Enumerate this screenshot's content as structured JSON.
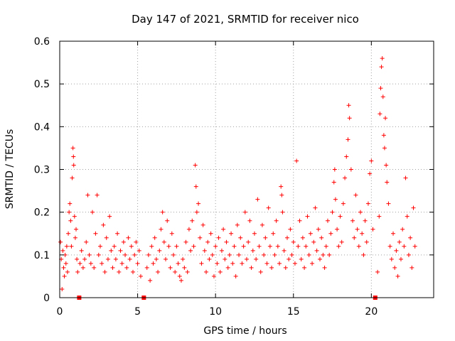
{
  "chart_data": {
    "type": "scatter",
    "title": "Day 147 of 2021, SRMTID for receiver nico",
    "xlabel": "GPS time / hours",
    "ylabel": "SRMTID / TECUs",
    "xlim": [
      0,
      24
    ],
    "ylim": [
      0,
      0.6
    ],
    "x_ticks": [
      0,
      5,
      10,
      15,
      20
    ],
    "y_ticks": [
      0,
      0.1,
      0.2,
      0.3,
      0.4,
      0.5,
      0.6
    ],
    "x_tick_labels": [
      "0",
      "5",
      "10",
      "15",
      "20"
    ],
    "y_tick_labels": [
      "0",
      "0.1",
      "0.2",
      "0.3",
      "0.4",
      "0.5",
      "0.6"
    ],
    "grid": true,
    "marker": "+",
    "marker_color": "#ff0000",
    "baseline_gaps_hours": [
      1.25,
      5.4,
      20.25
    ],
    "series": [
      {
        "name": "SRMTID",
        "points": [
          [
            0.05,
            0.13
          ],
          [
            0.1,
            0.09
          ],
          [
            0.15,
            0.02
          ],
          [
            0.2,
            0.11
          ],
          [
            0.25,
            0.07
          ],
          [
            0.3,
            0.05
          ],
          [
            0.35,
            0.1
          ],
          [
            0.4,
            0.08
          ],
          [
            0.45,
            0.12
          ],
          [
            0.5,
            0.06
          ],
          [
            0.55,
            0.15
          ],
          [
            0.6,
            0.2
          ],
          [
            0.65,
            0.22
          ],
          [
            0.7,
            0.18
          ],
          [
            0.75,
            0.12
          ],
          [
            0.8,
            0.28
          ],
          [
            0.85,
            0.35
          ],
          [
            0.88,
            0.33
          ],
          [
            0.9,
            0.31
          ],
          [
            0.95,
            0.19
          ],
          [
            1.0,
            0.14
          ],
          [
            1.05,
            0.16
          ],
          [
            1.1,
            0.09
          ],
          [
            1.15,
            0.06
          ],
          [
            1.3,
            0.08
          ],
          [
            1.4,
            0.11
          ],
          [
            1.5,
            0.07
          ],
          [
            1.6,
            0.09
          ],
          [
            1.7,
            0.13
          ],
          [
            1.8,
            0.24
          ],
          [
            1.9,
            0.1
          ],
          [
            2.0,
            0.08
          ],
          [
            2.1,
            0.2
          ],
          [
            2.2,
            0.07
          ],
          [
            2.3,
            0.15
          ],
          [
            2.4,
            0.24
          ],
          [
            2.5,
            0.1
          ],
          [
            2.6,
            0.12
          ],
          [
            2.7,
            0.08
          ],
          [
            2.8,
            0.17
          ],
          [
            2.9,
            0.06
          ],
          [
            3.0,
            0.14
          ],
          [
            3.1,
            0.09
          ],
          [
            3.2,
            0.19
          ],
          [
            3.3,
            0.11
          ],
          [
            3.4,
            0.07
          ],
          [
            3.5,
            0.12
          ],
          [
            3.6,
            0.09
          ],
          [
            3.7,
            0.15
          ],
          [
            3.8,
            0.06
          ],
          [
            3.9,
            0.11
          ],
          [
            4.0,
            0.08
          ],
          [
            4.1,
            0.13
          ],
          [
            4.2,
            0.1
          ],
          [
            4.3,
            0.07
          ],
          [
            4.4,
            0.14
          ],
          [
            4.5,
            0.09
          ],
          [
            4.6,
            0.12
          ],
          [
            4.7,
            0.06
          ],
          [
            4.8,
            0.1
          ],
          [
            4.9,
            0.13
          ],
          [
            5.0,
            0.08
          ],
          [
            5.1,
            0.11
          ],
          [
            5.2,
            0.05
          ],
          [
            5.6,
            0.07
          ],
          [
            5.7,
            0.1
          ],
          [
            5.8,
            0.04
          ],
          [
            5.9,
            0.12
          ],
          [
            6.0,
            0.08
          ],
          [
            6.1,
            0.14
          ],
          [
            6.2,
            0.09
          ],
          [
            6.3,
            0.06
          ],
          [
            6.4,
            0.11
          ],
          [
            6.5,
            0.16
          ],
          [
            6.6,
            0.2
          ],
          [
            6.7,
            0.13
          ],
          [
            6.8,
            0.09
          ],
          [
            6.9,
            0.18
          ],
          [
            7.0,
            0.12
          ],
          [
            7.1,
            0.07
          ],
          [
            7.2,
            0.15
          ],
          [
            7.3,
            0.1
          ],
          [
            7.4,
            0.06
          ],
          [
            7.5,
            0.12
          ],
          [
            7.6,
            0.08
          ],
          [
            7.7,
            0.05
          ],
          [
            7.8,
            0.04
          ],
          [
            7.9,
            0.09
          ],
          [
            8.0,
            0.07
          ],
          [
            8.1,
            0.13
          ],
          [
            8.2,
            0.06
          ],
          [
            8.3,
            0.16
          ],
          [
            8.4,
            0.11
          ],
          [
            8.5,
            0.18
          ],
          [
            8.6,
            0.12
          ],
          [
            8.7,
            0.31
          ],
          [
            8.75,
            0.26
          ],
          [
            8.8,
            0.2
          ],
          [
            8.9,
            0.22
          ],
          [
            9.0,
            0.14
          ],
          [
            9.1,
            0.08
          ],
          [
            9.2,
            0.17
          ],
          [
            9.3,
            0.11
          ],
          [
            9.4,
            0.06
          ],
          [
            9.5,
            0.13
          ],
          [
            9.6,
            0.09
          ],
          [
            9.7,
            0.15
          ],
          [
            9.8,
            0.1
          ],
          [
            9.9,
            0.05
          ],
          [
            10.0,
            0.12
          ],
          [
            10.1,
            0.08
          ],
          [
            10.2,
            0.14
          ],
          [
            10.3,
            0.06
          ],
          [
            10.4,
            0.11
          ],
          [
            10.5,
            0.16
          ],
          [
            10.6,
            0.09
          ],
          [
            10.7,
            0.13
          ],
          [
            10.8,
            0.07
          ],
          [
            10.9,
            0.1
          ],
          [
            11.0,
            0.15
          ],
          [
            11.1,
            0.08
          ],
          [
            11.2,
            0.12
          ],
          [
            11.3,
            0.05
          ],
          [
            11.4,
            0.17
          ],
          [
            11.5,
            0.1
          ],
          [
            11.6,
            0.14
          ],
          [
            11.7,
            0.08
          ],
          [
            11.8,
            0.12
          ],
          [
            11.9,
            0.2
          ],
          [
            12.0,
            0.09
          ],
          [
            12.1,
            0.13
          ],
          [
            12.2,
            0.18
          ],
          [
            12.3,
            0.07
          ],
          [
            12.4,
            0.11
          ],
          [
            12.5,
            0.15
          ],
          [
            12.6,
            0.09
          ],
          [
            12.7,
            0.23
          ],
          [
            12.8,
            0.12
          ],
          [
            12.9,
            0.06
          ],
          [
            13.0,
            0.17
          ],
          [
            13.1,
            0.1
          ],
          [
            13.2,
            0.14
          ],
          [
            13.3,
            0.08
          ],
          [
            13.4,
            0.21
          ],
          [
            13.5,
            0.12
          ],
          [
            13.6,
            0.07
          ],
          [
            13.7,
            0.15
          ],
          [
            13.8,
            0.1
          ],
          [
            13.9,
            0.18
          ],
          [
            14.0,
            0.12
          ],
          [
            14.1,
            0.08
          ],
          [
            14.2,
            0.26
          ],
          [
            14.25,
            0.24
          ],
          [
            14.3,
            0.2
          ],
          [
            14.4,
            0.11
          ],
          [
            14.5,
            0.07
          ],
          [
            14.6,
            0.14
          ],
          [
            14.7,
            0.09
          ],
          [
            14.8,
            0.16
          ],
          [
            14.9,
            0.1
          ],
          [
            15.0,
            0.13
          ],
          [
            15.1,
            0.08
          ],
          [
            15.2,
            0.32
          ],
          [
            15.3,
            0.12
          ],
          [
            15.4,
            0.18
          ],
          [
            15.5,
            0.09
          ],
          [
            15.6,
            0.14
          ],
          [
            15.7,
            0.07
          ],
          [
            15.8,
            0.12
          ],
          [
            15.9,
            0.19
          ],
          [
            16.0,
            0.1
          ],
          [
            16.1,
            0.15
          ],
          [
            16.2,
            0.08
          ],
          [
            16.3,
            0.13
          ],
          [
            16.4,
            0.21
          ],
          [
            16.5,
            0.11
          ],
          [
            16.6,
            0.16
          ],
          [
            16.7,
            0.09
          ],
          [
            16.8,
            0.14
          ],
          [
            16.9,
            0.1
          ],
          [
            17.0,
            0.07
          ],
          [
            17.1,
            0.12
          ],
          [
            17.2,
            0.18
          ],
          [
            17.3,
            0.1
          ],
          [
            17.4,
            0.15
          ],
          [
            17.5,
            0.2
          ],
          [
            17.6,
            0.27
          ],
          [
            17.65,
            0.3
          ],
          [
            17.7,
            0.23
          ],
          [
            17.8,
            0.16
          ],
          [
            17.9,
            0.12
          ],
          [
            18.0,
            0.19
          ],
          [
            18.1,
            0.13
          ],
          [
            18.2,
            0.22
          ],
          [
            18.3,
            0.28
          ],
          [
            18.4,
            0.33
          ],
          [
            18.5,
            0.37
          ],
          [
            18.55,
            0.45
          ],
          [
            18.6,
            0.42
          ],
          [
            18.7,
            0.3
          ],
          [
            18.8,
            0.18
          ],
          [
            18.9,
            0.14
          ],
          [
            19.0,
            0.24
          ],
          [
            19.1,
            0.16
          ],
          [
            19.2,
            0.12
          ],
          [
            19.3,
            0.2
          ],
          [
            19.4,
            0.15
          ],
          [
            19.5,
            0.1
          ],
          [
            19.6,
            0.18
          ],
          [
            19.7,
            0.13
          ],
          [
            19.8,
            0.22
          ],
          [
            19.9,
            0.29
          ],
          [
            20.0,
            0.32
          ],
          [
            20.1,
            0.16
          ],
          [
            20.4,
            0.06
          ],
          [
            20.5,
            0.19
          ],
          [
            20.55,
            0.43
          ],
          [
            20.6,
            0.49
          ],
          [
            20.65,
            0.54
          ],
          [
            20.7,
            0.56
          ],
          [
            20.75,
            0.47
          ],
          [
            20.8,
            0.38
          ],
          [
            20.85,
            0.35
          ],
          [
            20.9,
            0.42
          ],
          [
            20.95,
            0.31
          ],
          [
            21.0,
            0.27
          ],
          [
            21.1,
            0.22
          ],
          [
            21.2,
            0.12
          ],
          [
            21.3,
            0.09
          ],
          [
            21.4,
            0.15
          ],
          [
            21.5,
            0.07
          ],
          [
            21.6,
            0.11
          ],
          [
            21.7,
            0.05
          ],
          [
            21.8,
            0.13
          ],
          [
            21.9,
            0.09
          ],
          [
            22.0,
            0.16
          ],
          [
            22.1,
            0.12
          ],
          [
            22.2,
            0.28
          ],
          [
            22.3,
            0.19
          ],
          [
            22.4,
            0.1
          ],
          [
            22.5,
            0.14
          ],
          [
            22.6,
            0.07
          ],
          [
            22.7,
            0.21
          ],
          [
            22.8,
            0.12
          ]
        ]
      }
    ]
  }
}
